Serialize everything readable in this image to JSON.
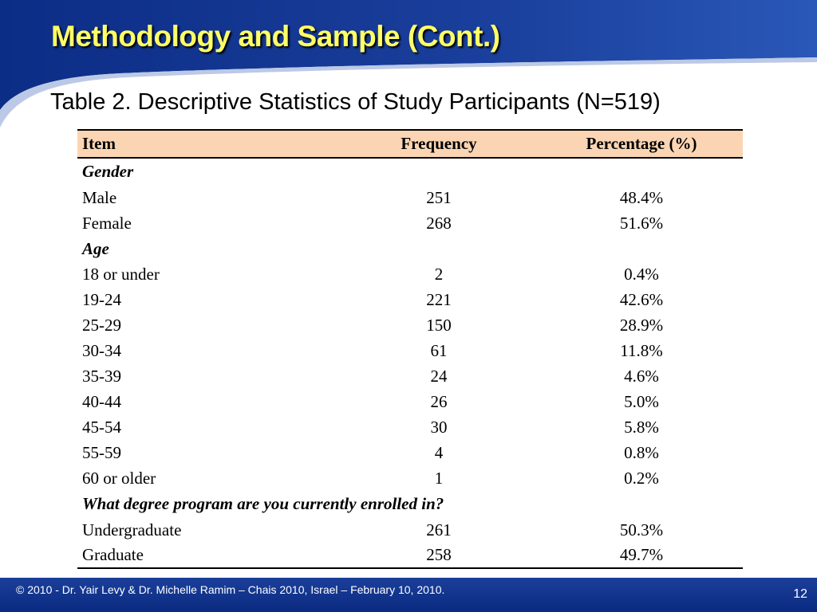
{
  "slide": {
    "title": "Methodology and Sample (Cont.)",
    "caption": "Table 2. Descriptive Statistics of Study Participants (N=519)"
  },
  "table": {
    "headers": [
      "Item",
      "Frequency",
      "Percentage (%)"
    ],
    "groups": [
      {
        "label": "Gender",
        "rows": [
          [
            "Male",
            "251",
            "48.4%"
          ],
          [
            "Female",
            "268",
            "51.6%"
          ]
        ]
      },
      {
        "label": "Age",
        "rows": [
          [
            "18 or under",
            "2",
            "0.4%"
          ],
          [
            "19-24",
            "221",
            "42.6%"
          ],
          [
            "25-29",
            "150",
            "28.9%"
          ],
          [
            "30-34",
            "61",
            "11.8%"
          ],
          [
            "35-39",
            "24",
            "4.6%"
          ],
          [
            "40-44",
            "26",
            "5.0%"
          ],
          [
            "45-54",
            "30",
            "5.8%"
          ],
          [
            "55-59",
            "4",
            "0.8%"
          ],
          [
            "60 or older",
            "1",
            "0.2%"
          ]
        ]
      },
      {
        "label": "What degree program are you currently enrolled in?",
        "rows": [
          [
            "Undergraduate",
            "261",
            "50.3%"
          ],
          [
            "Graduate",
            "258",
            "49.7%"
          ]
        ]
      }
    ]
  },
  "footer": {
    "copyright": "© 2010 - Dr. Yair Levy & Dr. Michelle Ramim – Chais 2010, Israel – February 10, 2010.",
    "page_number": "12"
  },
  "colors": {
    "title": "#ffff66",
    "header_band": "#1a3c95",
    "table_header": "#fbd5b3",
    "footer_bar": "#0f2f86"
  }
}
